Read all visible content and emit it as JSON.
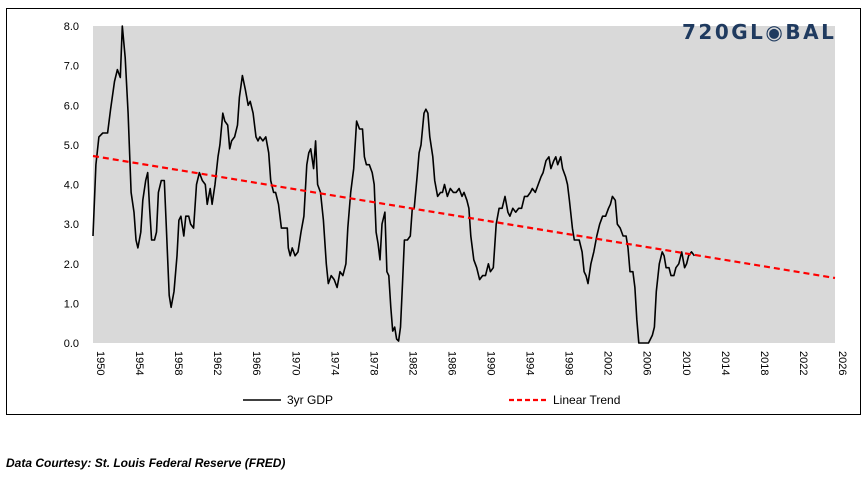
{
  "brand": {
    "logo_text": "720GL◉BAL",
    "logo_color": "#1f3a5f"
  },
  "footer": {
    "source": "Data Courtesy: St. Louis Federal Reserve (FRED)"
  },
  "chart_data": {
    "type": "line",
    "title": "",
    "xlabel": "",
    "ylabel": "",
    "xlim": [
      1950,
      2026
    ],
    "ylim": [
      0,
      8
    ],
    "x_ticks": [
      "1950",
      "1954",
      "1958",
      "1962",
      "1966",
      "1970",
      "1974",
      "1978",
      "1982",
      "1986",
      "1990",
      "1994",
      "1998",
      "2002",
      "2006",
      "2010",
      "2014",
      "2018",
      "2022",
      "2026"
    ],
    "y_ticks": [
      "0.0",
      "1.0",
      "2.0",
      "3.0",
      "4.0",
      "5.0",
      "6.0",
      "7.0",
      "8.0"
    ],
    "plot_background": "#d9d9d9",
    "legend_position": "bottom",
    "series": [
      {
        "name": "3yr GDP",
        "color": "#000000",
        "style": "solid",
        "points": [
          [
            1950.0,
            2.7
          ],
          [
            1950.3,
            4.5
          ],
          [
            1950.6,
            5.2
          ],
          [
            1951.0,
            5.3
          ],
          [
            1951.5,
            5.3
          ],
          [
            1951.8,
            5.9
          ],
          [
            1952.2,
            6.6
          ],
          [
            1952.5,
            6.9
          ],
          [
            1952.8,
            6.7
          ],
          [
            1953.0,
            8.0
          ],
          [
            1953.3,
            7.2
          ],
          [
            1953.6,
            5.8
          ],
          [
            1953.9,
            3.8
          ],
          [
            1954.2,
            3.3
          ],
          [
            1954.4,
            2.6
          ],
          [
            1954.6,
            2.4
          ],
          [
            1954.9,
            2.8
          ],
          [
            1955.1,
            3.6
          ],
          [
            1955.4,
            4.1
          ],
          [
            1955.6,
            4.3
          ],
          [
            1955.8,
            3.4
          ],
          [
            1956.0,
            2.6
          ],
          [
            1956.3,
            2.6
          ],
          [
            1956.5,
            2.8
          ],
          [
            1956.7,
            3.8
          ],
          [
            1957.0,
            4.1
          ],
          [
            1957.3,
            4.1
          ],
          [
            1957.5,
            3.0
          ],
          [
            1957.8,
            1.2
          ],
          [
            1958.0,
            0.9
          ],
          [
            1958.3,
            1.3
          ],
          [
            1958.6,
            2.2
          ],
          [
            1958.8,
            3.1
          ],
          [
            1959.0,
            3.2
          ],
          [
            1959.3,
            2.7
          ],
          [
            1959.5,
            3.2
          ],
          [
            1959.8,
            3.2
          ],
          [
            1960.0,
            3.0
          ],
          [
            1960.3,
            2.9
          ],
          [
            1960.6,
            4.0
          ],
          [
            1960.9,
            4.3
          ],
          [
            1961.2,
            4.1
          ],
          [
            1961.5,
            4.0
          ],
          [
            1961.7,
            3.5
          ],
          [
            1962.0,
            3.9
          ],
          [
            1962.2,
            3.5
          ],
          [
            1962.5,
            4.0
          ],
          [
            1962.8,
            4.7
          ],
          [
            1963.0,
            5.0
          ],
          [
            1963.3,
            5.8
          ],
          [
            1963.5,
            5.6
          ],
          [
            1963.8,
            5.5
          ],
          [
            1964.0,
            4.9
          ],
          [
            1964.2,
            5.1
          ],
          [
            1964.5,
            5.2
          ],
          [
            1964.8,
            5.5
          ],
          [
            1965.0,
            6.2
          ],
          [
            1965.3,
            6.75
          ],
          [
            1965.6,
            6.4
          ],
          [
            1965.9,
            6.0
          ],
          [
            1966.1,
            6.1
          ],
          [
            1966.4,
            5.8
          ],
          [
            1966.7,
            5.2
          ],
          [
            1966.9,
            5.1
          ],
          [
            1967.1,
            5.2
          ],
          [
            1967.4,
            5.1
          ],
          [
            1967.7,
            5.2
          ],
          [
            1968.0,
            4.8
          ],
          [
            1968.2,
            4.1
          ],
          [
            1968.5,
            3.8
          ],
          [
            1968.7,
            3.8
          ],
          [
            1969.0,
            3.5
          ],
          [
            1969.3,
            2.9
          ],
          [
            1969.6,
            2.9
          ],
          [
            1969.9,
            2.9
          ],
          [
            1970.0,
            2.4
          ],
          [
            1970.2,
            2.2
          ],
          [
            1970.4,
            2.4
          ],
          [
            1970.7,
            2.2
          ],
          [
            1971.0,
            2.3
          ],
          [
            1971.3,
            2.8
          ],
          [
            1971.6,
            3.2
          ],
          [
            1971.9,
            4.5
          ],
          [
            1972.1,
            4.8
          ],
          [
            1972.3,
            4.9
          ],
          [
            1972.6,
            4.4
          ],
          [
            1972.8,
            5.1
          ],
          [
            1973.0,
            4.0
          ],
          [
            1973.3,
            3.8
          ],
          [
            1973.6,
            3.1
          ],
          [
            1973.9,
            2.0
          ],
          [
            1974.1,
            1.5
          ],
          [
            1974.4,
            1.7
          ],
          [
            1974.7,
            1.6
          ],
          [
            1975.0,
            1.4
          ],
          [
            1975.3,
            1.8
          ],
          [
            1975.6,
            1.7
          ],
          [
            1975.9,
            2.0
          ],
          [
            1976.1,
            2.9
          ],
          [
            1976.4,
            3.8
          ],
          [
            1976.7,
            4.4
          ],
          [
            1977.0,
            5.6
          ],
          [
            1977.3,
            5.4
          ],
          [
            1977.6,
            5.4
          ],
          [
            1977.8,
            4.7
          ],
          [
            1978.0,
            4.5
          ],
          [
            1978.3,
            4.5
          ],
          [
            1978.6,
            4.3
          ],
          [
            1978.8,
            4.0
          ],
          [
            1979.0,
            2.8
          ],
          [
            1979.2,
            2.5
          ],
          [
            1979.4,
            2.1
          ],
          [
            1979.6,
            3.0
          ],
          [
            1979.9,
            3.3
          ],
          [
            1980.1,
            1.8
          ],
          [
            1980.3,
            1.7
          ],
          [
            1980.5,
            0.9
          ],
          [
            1980.7,
            0.3
          ],
          [
            1980.9,
            0.4
          ],
          [
            1981.1,
            0.1
          ],
          [
            1981.3,
            0.05
          ],
          [
            1981.5,
            0.4
          ],
          [
            1981.7,
            1.5
          ],
          [
            1981.9,
            2.6
          ],
          [
            1982.2,
            2.6
          ],
          [
            1982.5,
            2.7
          ],
          [
            1982.7,
            3.4
          ],
          [
            1982.9,
            3.4
          ],
          [
            1983.2,
            4.2
          ],
          [
            1983.4,
            4.8
          ],
          [
            1983.6,
            5.0
          ],
          [
            1983.9,
            5.8
          ],
          [
            1984.1,
            5.9
          ],
          [
            1984.3,
            5.8
          ],
          [
            1984.5,
            5.2
          ],
          [
            1984.8,
            4.7
          ],
          [
            1985.0,
            4.1
          ],
          [
            1985.3,
            3.7
          ],
          [
            1985.6,
            3.8
          ],
          [
            1985.8,
            3.8
          ],
          [
            1986.0,
            4.0
          ],
          [
            1986.3,
            3.7
          ],
          [
            1986.6,
            3.9
          ],
          [
            1986.9,
            3.8
          ],
          [
            1987.2,
            3.8
          ],
          [
            1987.5,
            3.9
          ],
          [
            1987.8,
            3.7
          ],
          [
            1988.0,
            3.8
          ],
          [
            1988.3,
            3.6
          ],
          [
            1988.5,
            3.4
          ],
          [
            1988.7,
            2.7
          ],
          [
            1989.0,
            2.1
          ],
          [
            1989.3,
            1.9
          ],
          [
            1989.6,
            1.6
          ],
          [
            1989.9,
            1.7
          ],
          [
            1990.2,
            1.7
          ],
          [
            1990.5,
            2.0
          ],
          [
            1990.7,
            1.8
          ],
          [
            1991.0,
            1.9
          ],
          [
            1991.3,
            3.0
          ],
          [
            1991.6,
            3.4
          ],
          [
            1991.9,
            3.4
          ],
          [
            1992.2,
            3.7
          ],
          [
            1992.5,
            3.3
          ],
          [
            1992.7,
            3.2
          ],
          [
            1993.0,
            3.4
          ],
          [
            1993.3,
            3.3
          ],
          [
            1993.6,
            3.4
          ],
          [
            1993.9,
            3.4
          ],
          [
            1994.2,
            3.7
          ],
          [
            1994.5,
            3.7
          ],
          [
            1994.8,
            3.8
          ],
          [
            1995.0,
            3.9
          ],
          [
            1995.3,
            3.8
          ],
          [
            1995.6,
            4.0
          ],
          [
            1995.9,
            4.2
          ],
          [
            1996.1,
            4.3
          ],
          [
            1996.4,
            4.6
          ],
          [
            1996.7,
            4.7
          ],
          [
            1996.9,
            4.4
          ],
          [
            1997.2,
            4.6
          ],
          [
            1997.4,
            4.7
          ],
          [
            1997.6,
            4.5
          ],
          [
            1997.9,
            4.7
          ],
          [
            1998.1,
            4.4
          ],
          [
            1998.4,
            4.2
          ],
          [
            1998.6,
            4.0
          ],
          [
            1998.8,
            3.6
          ],
          [
            1999.1,
            2.9
          ],
          [
            1999.3,
            2.6
          ],
          [
            1999.6,
            2.6
          ],
          [
            1999.8,
            2.6
          ],
          [
            2000.1,
            2.3
          ],
          [
            2000.3,
            1.8
          ],
          [
            2000.5,
            1.7
          ],
          [
            2000.7,
            1.5
          ],
          [
            2001.0,
            2.0
          ],
          [
            2001.3,
            2.3
          ],
          [
            2001.6,
            2.7
          ],
          [
            2001.9,
            3.0
          ],
          [
            2002.2,
            3.2
          ],
          [
            2002.5,
            3.2
          ],
          [
            2002.8,
            3.4
          ],
          [
            2003.0,
            3.5
          ],
          [
            2003.2,
            3.7
          ],
          [
            2003.5,
            3.6
          ],
          [
            2003.7,
            3.0
          ],
          [
            2004.0,
            2.9
          ],
          [
            2004.3,
            2.7
          ],
          [
            2004.6,
            2.7
          ],
          [
            2004.8,
            2.4
          ],
          [
            2005.0,
            1.8
          ],
          [
            2005.3,
            1.8
          ],
          [
            2005.5,
            1.4
          ],
          [
            2005.7,
            0.6
          ],
          [
            2005.9,
            0.0
          ],
          [
            2006.9,
            0.0
          ],
          [
            2007.1,
            0.1
          ],
          [
            2007.3,
            0.2
          ],
          [
            2007.5,
            0.4
          ],
          [
            2007.7,
            1.3
          ],
          [
            2008.0,
            2.0
          ],
          [
            2008.3,
            2.3
          ],
          [
            2008.5,
            2.2
          ],
          [
            2008.7,
            1.9
          ],
          [
            2009.0,
            1.9
          ],
          [
            2009.2,
            1.7
          ],
          [
            2009.5,
            1.7
          ],
          [
            2009.7,
            1.9
          ],
          [
            2010.0,
            2.0
          ],
          [
            2010.3,
            2.3
          ],
          [
            2010.6,
            1.9
          ],
          [
            2010.8,
            2.0
          ],
          [
            2011.0,
            2.2
          ],
          [
            2011.3,
            2.3
          ],
          [
            2011.6,
            2.2
          ]
        ]
      },
      {
        "name": "Linear Trend",
        "color": "#ff0000",
        "style": "dashed",
        "points": [
          [
            1950,
            4.72
          ],
          [
            2026,
            1.64
          ]
        ]
      }
    ]
  }
}
